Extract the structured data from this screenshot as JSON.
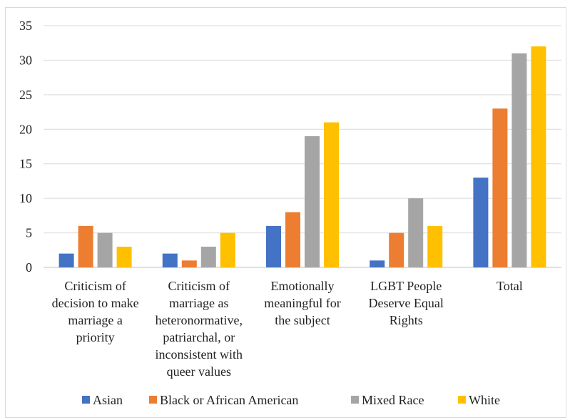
{
  "chart_data": {
    "type": "bar",
    "categories": [
      [
        "Criticism of",
        "decision to make",
        "marriage a",
        "priority"
      ],
      [
        "Criticism of",
        "marriage as",
        "heteronormative,",
        "patriarchal, or",
        "inconsistent with",
        "queer values"
      ],
      [
        "Emotionally",
        "meaningful for",
        "the subject"
      ],
      [
        "LGBT People",
        "Deserve Equal",
        "Rights"
      ],
      [
        "Total"
      ]
    ],
    "series": [
      {
        "name": "Asian",
        "color": "#4472c4",
        "values": [
          2,
          2,
          6,
          1,
          13
        ]
      },
      {
        "name": "Black or African American",
        "color": "#ed7d31",
        "values": [
          6,
          1,
          8,
          5,
          23
        ]
      },
      {
        "name": "Mixed Race",
        "color": "#a5a5a5",
        "values": [
          5,
          3,
          19,
          10,
          31
        ]
      },
      {
        "name": "White",
        "color": "#ffc000",
        "values": [
          3,
          5,
          21,
          6,
          32
        ]
      }
    ],
    "y_ticks": [
      0,
      5,
      10,
      15,
      20,
      25,
      30,
      35
    ],
    "ylim": [
      0,
      35
    ],
    "grid": true,
    "legend_position": "bottom",
    "title": "",
    "xlabel": "",
    "ylabel": ""
  }
}
